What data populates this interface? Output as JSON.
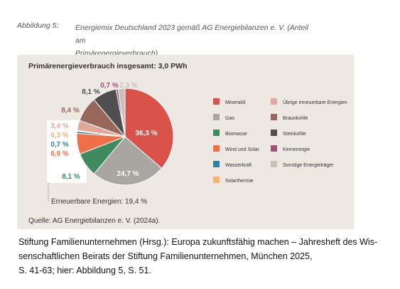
{
  "figure": {
    "label": "Abbildung 5:",
    "title_line1": "Energiemix Deutschland 2023 gemäß AG Energiebilanzen e. V. (Anteil am",
    "title_line2": "Primärenergieverbrauch)"
  },
  "chart_data": {
    "type": "pie",
    "title": "Primärenergieverbrauch insgesamt: 3,0 PWh",
    "unit": "%",
    "slices": [
      {
        "name": "Mineralöl",
        "value": 36.3,
        "label": "36,3 %",
        "color": "#d9534a"
      },
      {
        "name": "Gas",
        "value": 24.7,
        "label": "24,7 %",
        "color": "#a9a6a2"
      },
      {
        "name": "Biomasse",
        "value": 8.1,
        "label": "8,1 %",
        "color": "#3f8a5f"
      },
      {
        "name": "Wind und Solar",
        "value": 6.9,
        "label": "6,9 %",
        "color": "#ef7048"
      },
      {
        "name": "Wasserkraft",
        "value": 0.7,
        "label": "0,7 %",
        "color": "#2f7fa6"
      },
      {
        "name": "Solarthermie",
        "value": 0.3,
        "label": "0,3 %",
        "color": "#f7b26e"
      },
      {
        "name": "Übrige erneuerbare Energien",
        "value": 3.4,
        "label": "3,4 %",
        "color": "#e3a79a"
      },
      {
        "name": "Braunkohle",
        "value": 8.4,
        "label": "8,4 %",
        "color": "#97675c"
      },
      {
        "name": "Steinkohle",
        "value": 8.1,
        "label": "8,1 %",
        "color": "#4f4f4f"
      },
      {
        "name": "Kernenergie",
        "value": 0.7,
        "label": "0,7 %",
        "color": "#a0507a"
      },
      {
        "name": "Sonstige Energieträger",
        "value": 2.3,
        "label": "2,3 %",
        "color": "#c8c0b9"
      }
    ],
    "renewables_annotation": "Erneuerbare Energien: 19,4 %",
    "legend_left": [
      "Mineralöl",
      "Gas",
      "Biomasse",
      "Wind und Solar",
      "Wasserkraft",
      "Solarthermie"
    ],
    "legend_right": [
      "Übrige erneuerbare Energien",
      "Braunkohle",
      "Steinkohle",
      "Kernenergie",
      "Sonstige Energieträger"
    ],
    "legend_placement": "right",
    "source": "Quelle: AG Energiebilanzen e. V. (2024a)."
  },
  "citation": {
    "line1": "Stiftung Familienunternehmen (Hrsg.): Europa zukunftsfähig machen – Jahresheft des Wis-",
    "line2": "senschaftlichen Beirats der Stiftung Familienunternehmen, München 2025,",
    "line3": "S. 41-63; hier: Abbildung 5, S. 51."
  }
}
